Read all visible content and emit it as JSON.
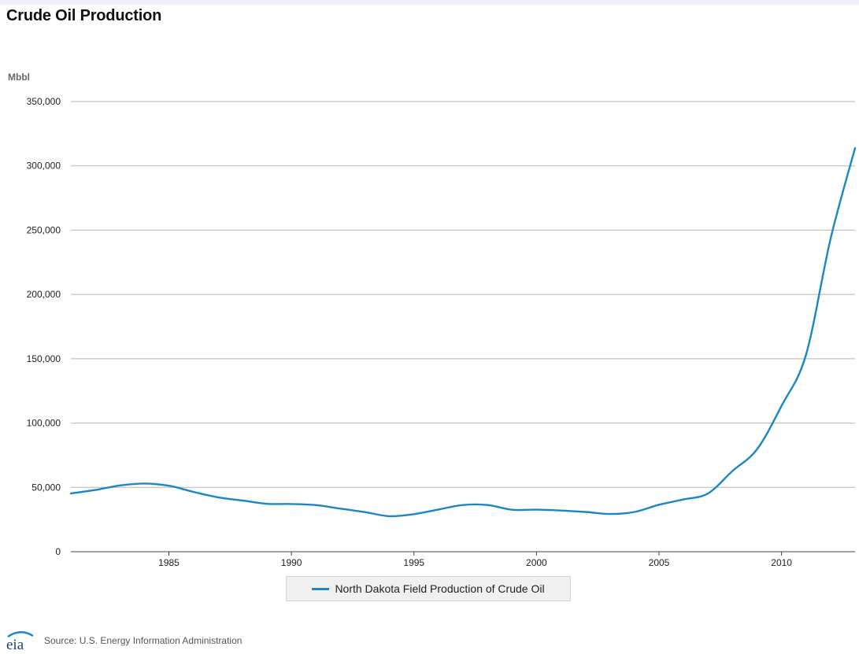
{
  "title": "Crude Oil Production",
  "source": "Source: U.S. Energy Information Administration",
  "logo_text": "eia",
  "colors": {
    "series": "#1b86c6",
    "grid": "#b5b5b5",
    "axis_text": "#222222",
    "unit_text": "#666666"
  },
  "chart_data": {
    "type": "line",
    "title": "Crude Oil Production",
    "ylabel": "Mbbl",
    "xlabel": "",
    "xlim": [
      1981,
      2013
    ],
    "ylim": [
      0,
      350000
    ],
    "x_ticks": [
      1985,
      1990,
      1995,
      2000,
      2005,
      2010
    ],
    "y_ticks": [
      0,
      50000,
      100000,
      150000,
      200000,
      250000,
      300000,
      350000
    ],
    "y_tick_labels": [
      "0",
      "50,000",
      "100,000",
      "150,000",
      "200,000",
      "250,000",
      "300,000",
      "350,000"
    ],
    "grid": true,
    "legend_position": "bottom",
    "series": [
      {
        "name": "North Dakota Field Production of Crude Oil",
        "x": [
          1981,
          1982,
          1983,
          1984,
          1985,
          1986,
          1987,
          1988,
          1989,
          1990,
          1991,
          1992,
          1993,
          1994,
          1995,
          1996,
          1997,
          1998,
          1999,
          2000,
          2001,
          2002,
          2003,
          2004,
          2005,
          2006,
          2007,
          2008,
          2009,
          2010,
          2011,
          2012,
          2013
        ],
        "values": [
          45300,
          48000,
          51500,
          53000,
          51300,
          46500,
          42300,
          39800,
          37200,
          37100,
          36200,
          33500,
          30800,
          27600,
          29200,
          32800,
          36300,
          36300,
          32600,
          32700,
          32000,
          30900,
          29300,
          30900,
          36500,
          40600,
          45300,
          62800,
          79600,
          113400,
          153300,
          243300,
          313800
        ]
      }
    ]
  }
}
